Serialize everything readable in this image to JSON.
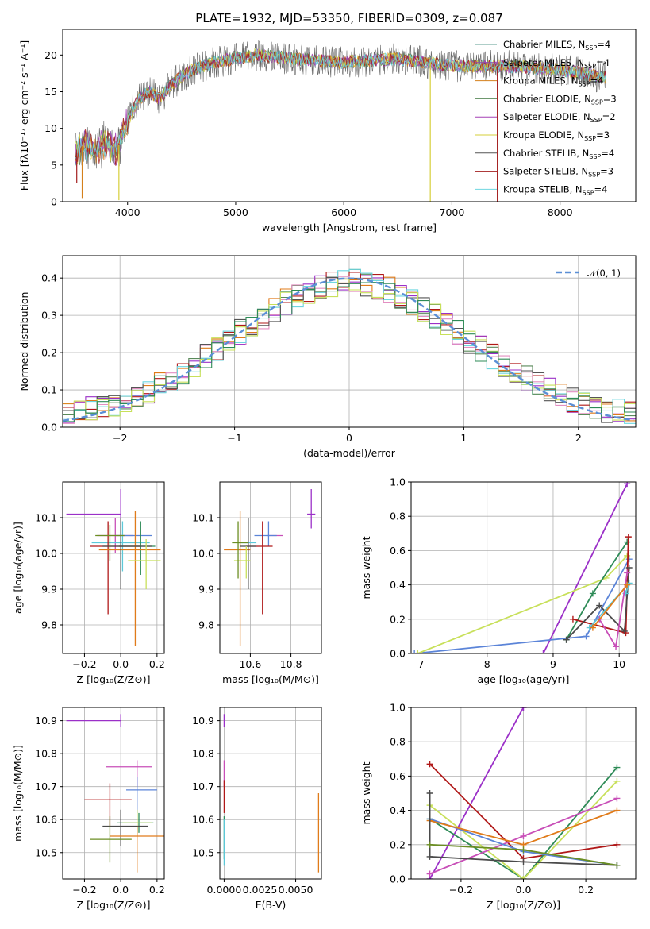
{
  "figure": {
    "title": "PLATE=1932, MJD=53350, FIBERID=0309, z=0.087"
  },
  "colors": {
    "series": [
      "#5e9c92",
      "#8e44ad",
      "#d4801c",
      "#5a8a5a",
      "#a641b5",
      "#d6cf3a",
      "#555555",
      "#a31e1e",
      "#6ed6e0"
    ],
    "models": [
      "#6b8e23",
      "#9b30c8",
      "#e07b1a",
      "#2e8b57",
      "#c84fb8",
      "#c8e05a",
      "#4a4a4a",
      "#b01818",
      "#5cc8d8",
      "#5b84d8"
    ],
    "normal": "#5b8fd6"
  },
  "legend_top": [
    {
      "text": "Chabrier MILES, N",
      "sub": "SSP",
      "tail": "=4"
    },
    {
      "text": "Salpeter MILES, N",
      "sub": "SSP",
      "tail": "=4"
    },
    {
      "text": "Kroupa MILES, N",
      "sub": "SSP",
      "tail": "=4"
    },
    {
      "text": "Chabrier ELODIE, N",
      "sub": "SSP",
      "tail": "=3"
    },
    {
      "text": "Salpeter ELODIE, N",
      "sub": "SSP",
      "tail": "=2"
    },
    {
      "text": "Kroupa ELODIE, N",
      "sub": "SSP",
      "tail": "=3"
    },
    {
      "text": "Chabrier STELIB, N",
      "sub": "SSP",
      "tail": "=4"
    },
    {
      "text": "Salpeter STELIB, N",
      "sub": "SSP",
      "tail": "=3"
    },
    {
      "text": "Kroupa STELIB, N",
      "sub": "SSP",
      "tail": "=4"
    }
  ],
  "chart_data": [
    {
      "type": "line",
      "title": "PLATE=1932, MJD=53350, FIBERID=0309, z=0.087",
      "xlabel": "wavelength [Angstrom, rest frame]",
      "ylabel": "Flux [fλ10⁻¹⁷ erg cm⁻² s⁻¹ A⁻¹]",
      "xlim": [
        3400,
        8700
      ],
      "ylim": [
        0,
        23.5
      ],
      "xticks": [
        4000,
        5000,
        6000,
        7000,
        8000
      ],
      "yticks": [
        0,
        5,
        10,
        15,
        20
      ],
      "spectrum_profile": {
        "x": [
          3500,
          3600,
          3700,
          3800,
          3900,
          4000,
          4100,
          4200,
          4300,
          4400,
          4500,
          4600,
          4800,
          5000,
          5200,
          5500,
          6000,
          6500,
          7000,
          7500,
          8000,
          8400
        ],
        "y": [
          6,
          8,
          7,
          8,
          7,
          11,
          14,
          15,
          14,
          16,
          17,
          18,
          19,
          19.5,
          20,
          19.5,
          19,
          19.5,
          18.5,
          18.5,
          18,
          17
        ]
      },
      "spikes": [
        {
          "x": 3530,
          "y": 2.5
        },
        {
          "x": 3580,
          "y": 0.5
        },
        {
          "x": 3920,
          "y": 0.2
        },
        {
          "x": 6800,
          "y": 0.0
        },
        {
          "x": 7420,
          "y": 0.0
        }
      ]
    },
    {
      "type": "bar",
      "xlabel": "(data-model)/error",
      "ylabel": "Normed distribution",
      "xlim": [
        -2.5,
        2.5
      ],
      "ylim": [
        0,
        0.46
      ],
      "xticks": [
        -2,
        -1,
        0,
        1,
        2
      ],
      "yticks": [
        0.0,
        0.1,
        0.2,
        0.3,
        0.4
      ],
      "normal_label": "𝒩(0, 1)",
      "bin_width": 0.1
    },
    {
      "type": "scatter",
      "xlabel": "Z [log₁₀(Z/Z⊙)]",
      "ylabel": "age  [log₁₀(age/yr)]",
      "xlim": [
        -0.32,
        0.24
      ],
      "ylim": [
        9.72,
        10.2
      ],
      "xticks": [
        -0.2,
        0.0,
        0.2
      ],
      "xticklabels": [
        "−0.2",
        "0.0",
        "0.2"
      ],
      "yticks": [
        9.8,
        9.9,
        10.0,
        10.1
      ],
      "points": [
        {
          "x": 0.0,
          "y": 10.11,
          "xerr": [
            0.3,
            0.0
          ],
          "yerr": [
            0.04,
            0.07
          ],
          "c": 1
        },
        {
          "x": -0.03,
          "y": 10.05,
          "xerr": [
            0.1,
            0.1
          ],
          "yerr": [
            0.05,
            0.05
          ],
          "c": 4
        },
        {
          "x": 0.09,
          "y": 10.05,
          "xerr": [
            0.12,
            0.08
          ],
          "yerr": [
            0.0,
            0.0
          ],
          "c": 9
        },
        {
          "x": 0.01,
          "y": 10.03,
          "xerr": [
            0.17,
            0.15
          ],
          "yerr": [
            0.08,
            0.06
          ],
          "c": 8
        },
        {
          "x": 0.11,
          "y": 10.02,
          "xerr": [
            0.12,
            0.08
          ],
          "yerr": [
            0.08,
            0.07
          ],
          "c": 3
        },
        {
          "x": -0.07,
          "y": 10.02,
          "xerr": [
            0.1,
            0.18
          ],
          "yerr": [
            0.19,
            0.07
          ],
          "c": 7
        },
        {
          "x": 0.08,
          "y": 10.01,
          "xerr": [
            0.2,
            0.14
          ],
          "yerr": [
            0.27,
            0.11
          ],
          "c": 2
        },
        {
          "x": 0.0,
          "y": 10.02,
          "xerr": [
            0.1,
            0.17
          ],
          "yerr": [
            0.12,
            0.08
          ],
          "c": 6
        },
        {
          "x": 0.14,
          "y": 9.98,
          "xerr": [
            0.1,
            0.08
          ],
          "yerr": [
            0.08,
            0.06
          ],
          "c": 5
        },
        {
          "x": -0.06,
          "y": 10.05,
          "xerr": [
            0.08,
            0.08
          ],
          "yerr": [
            0.07,
            0.03
          ],
          "c": 0
        }
      ]
    },
    {
      "type": "scatter",
      "xlabel": "mass [log₁₀(M/M⊙)]",
      "ylabel": "",
      "xlim": [
        10.45,
        10.95
      ],
      "ylim": [
        9.72,
        10.2
      ],
      "xticks": [
        10.6,
        10.8
      ],
      "yticks": [
        9.8,
        9.9,
        10.0,
        10.1
      ],
      "points": [
        {
          "x": 10.9,
          "y": 10.11,
          "xerr": [
            0.02,
            0.02
          ],
          "yerr": [
            0.04,
            0.07
          ],
          "c": 1
        },
        {
          "x": 10.74,
          "y": 10.05,
          "xerr": [
            0.06,
            0.02
          ],
          "yerr": [
            0.0,
            0.0
          ],
          "c": 4
        },
        {
          "x": 10.69,
          "y": 10.05,
          "xerr": [
            0.07,
            0.04
          ],
          "yerr": [
            0.03,
            0.04
          ],
          "c": 9
        },
        {
          "x": 10.66,
          "y": 10.02,
          "xerr": [
            0.08,
            0.05
          ],
          "yerr": [
            0.19,
            0.07
          ],
          "c": 7
        },
        {
          "x": 10.6,
          "y": 10.03,
          "xerr": [
            0.07,
            0.03
          ],
          "yerr": [
            0.0,
            0.0
          ],
          "c": 8
        },
        {
          "x": 10.55,
          "y": 10.01,
          "xerr": [
            0.08,
            0.05
          ],
          "yerr": [
            0.27,
            0.11
          ],
          "c": 2
        },
        {
          "x": 10.59,
          "y": 10.02,
          "xerr": [
            0.04,
            0.04
          ],
          "yerr": [
            0.12,
            0.08
          ],
          "c": 6
        },
        {
          "x": 10.58,
          "y": 9.98,
          "xerr": [
            0.06,
            0.02
          ],
          "yerr": [
            0.05,
            0.04
          ],
          "c": 5
        },
        {
          "x": 10.54,
          "y": 10.03,
          "xerr": [
            0.03,
            0.05
          ],
          "yerr": [
            0.1,
            0.06
          ],
          "c": 0
        }
      ]
    },
    {
      "type": "line",
      "xlabel": "age  [log₁₀(age/yr)]",
      "ylabel": "mass weight",
      "xlim": [
        6.85,
        10.25
      ],
      "ylim": [
        0,
        1.0
      ],
      "xticks": [
        7,
        8,
        9,
        10
      ],
      "yticks": [
        0.0,
        0.2,
        0.4,
        0.6,
        0.8,
        1.0
      ],
      "series": [
        {
          "c": 1,
          "x": [
            8.85,
            10.12
          ],
          "y": [
            0.0,
            0.99
          ]
        },
        {
          "c": 9,
          "x": [
            6.9,
            9.5,
            10.15
          ],
          "y": [
            0.0,
            0.1,
            0.55
          ]
        },
        {
          "c": 5,
          "x": [
            6.95,
            9.8,
            10.12
          ],
          "y": [
            0.0,
            0.44,
            0.57
          ]
        },
        {
          "c": 3,
          "x": [
            9.2,
            9.6,
            10.12
          ],
          "y": [
            0.08,
            0.35,
            0.65
          ]
        },
        {
          "c": 7,
          "x": [
            9.3,
            10.1,
            10.14
          ],
          "y": [
            0.2,
            0.12,
            0.68
          ]
        },
        {
          "c": 6,
          "x": [
            9.2,
            9.7,
            10.08,
            10.15
          ],
          "y": [
            0.08,
            0.28,
            0.13,
            0.5
          ]
        },
        {
          "c": 8,
          "x": [
            9.55,
            10.15,
            10.1
          ],
          "y": [
            0.15,
            0.41,
            0.35
          ]
        },
        {
          "c": 4,
          "x": [
            9.7,
            9.95,
            10.12
          ],
          "y": [
            0.2,
            0.04,
            0.47
          ]
        },
        {
          "c": 2,
          "x": [
            9.6,
            10.12
          ],
          "y": [
            0.15,
            0.4
          ]
        }
      ]
    },
    {
      "type": "scatter",
      "xlabel": "Z [log₁₀(Z/Z⊙)]",
      "ylabel": "mass [log₁₀(M/M⊙)]",
      "xlim": [
        -0.32,
        0.24
      ],
      "ylim": [
        10.42,
        10.94
      ],
      "xticks": [
        -0.2,
        0.0,
        0.2
      ],
      "xticklabels": [
        "−0.2",
        "0.0",
        "0.2"
      ],
      "yticks": [
        10.5,
        10.6,
        10.7,
        10.8,
        10.9
      ],
      "points": [
        {
          "x": 0.0,
          "y": 10.9,
          "xerr": [
            0.3,
            0.0
          ],
          "yerr": [
            0.02,
            0.02
          ],
          "c": 1
        },
        {
          "x": 0.09,
          "y": 10.76,
          "xerr": [
            0.17,
            0.08
          ],
          "yerr": [
            0.06,
            0.02
          ],
          "c": 4
        },
        {
          "x": 0.09,
          "y": 10.69,
          "xerr": [
            0.06,
            0.11
          ],
          "yerr": [
            0.07,
            0.04
          ],
          "c": 9
        },
        {
          "x": -0.06,
          "y": 10.66,
          "xerr": [
            0.14,
            0.12
          ],
          "yerr": [
            0.08,
            0.05
          ],
          "c": 7
        },
        {
          "x": 0.1,
          "y": 10.59,
          "xerr": [
            0.12,
            0.08
          ],
          "yerr": [
            0.03,
            0.03
          ],
          "c": 3
        },
        {
          "x": 0.09,
          "y": 10.59,
          "xerr": [
            0.08,
            0.08
          ],
          "yerr": [
            0.04,
            0.04
          ],
          "c": 5
        },
        {
          "x": 0.0,
          "y": 10.58,
          "xerr": [
            0.1,
            0.15
          ],
          "yerr": [
            0.06,
            0.05
          ],
          "c": 6
        },
        {
          "x": 0.09,
          "y": 10.55,
          "xerr": [
            0.15,
            0.16
          ],
          "yerr": [
            0.11,
            0.03
          ],
          "c": 2
        },
        {
          "x": -0.06,
          "y": 10.54,
          "xerr": [
            0.11,
            0.12
          ],
          "yerr": [
            0.07,
            0.07
          ],
          "c": 0
        }
      ]
    },
    {
      "type": "scatter",
      "xlabel": "E(B-V)",
      "ylabel": "",
      "xlim": [
        -0.0003,
        0.0068
      ],
      "ylim": [
        10.42,
        10.94
      ],
      "xticks": [
        0.0,
        0.0025,
        0.005
      ],
      "xticklabels": [
        "0.0000",
        "0.0025",
        "0.0050"
      ],
      "yticks": [
        10.5,
        10.6,
        10.7,
        10.8,
        10.9
      ],
      "points": [
        {
          "x": 0.0,
          "y": 10.9,
          "xerr": [
            0,
            0
          ],
          "yerr": [
            0.02,
            0.02
          ],
          "c": 1
        },
        {
          "x": 0.0,
          "y": 10.74,
          "xerr": [
            0,
            0
          ],
          "yerr": [
            0.04,
            0.04
          ],
          "c": 4
        },
        {
          "x": 0.0,
          "y": 10.67,
          "xerr": [
            0,
            0
          ],
          "yerr": [
            0.05,
            0.05
          ],
          "c": 7
        },
        {
          "x": 0.0,
          "y": 10.56,
          "xerr": [
            0,
            0
          ],
          "yerr": [
            0.08,
            0.05
          ],
          "c": 3
        },
        {
          "x": 0.0,
          "y": 10.52,
          "xerr": [
            0,
            0
          ],
          "yerr": [
            0.06,
            0.08
          ],
          "c": 8
        },
        {
          "x": 0.0066,
          "y": 10.56,
          "xerr": [
            0,
            0
          ],
          "yerr": [
            0.12,
            0.12
          ],
          "c": 2
        }
      ]
    },
    {
      "type": "line",
      "xlabel": "Z [log₁₀(Z/Z⊙)]",
      "ylabel": "mass weight",
      "xlim": [
        -0.36,
        0.36
      ],
      "ylim": [
        0,
        1.0
      ],
      "xticks": [
        -0.2,
        0.0,
        0.2
      ],
      "xticklabels": [
        "−0.2",
        "0.0",
        "0.2"
      ],
      "yticks": [
        0.0,
        0.2,
        0.4,
        0.6,
        0.8,
        1.0
      ],
      "series": [
        {
          "c": 1,
          "x": [
            -0.3,
            0.0
          ],
          "y": [
            0.0,
            1.0
          ]
        },
        {
          "c": 7,
          "x": [
            -0.3,
            0.0,
            0.3
          ],
          "y": [
            0.67,
            0.12,
            0.2
          ]
        },
        {
          "c": 3,
          "x": [
            -0.3,
            0.0,
            0.3
          ],
          "y": [
            0.35,
            0.0,
            0.65
          ]
        },
        {
          "c": 5,
          "x": [
            -0.3,
            0.0,
            0.3
          ],
          "y": [
            0.43,
            0.0,
            0.57
          ]
        },
        {
          "c": 4,
          "x": [
            -0.3,
            0.0,
            0.3
          ],
          "y": [
            0.03,
            0.25,
            0.47
          ]
        },
        {
          "c": 9,
          "x": [
            -0.3,
            0.0,
            0.3
          ],
          "y": [
            0.35,
            0.16,
            0.08
          ]
        },
        {
          "c": 2,
          "x": [
            -0.3,
            0.0,
            0.3
          ],
          "y": [
            0.34,
            0.2,
            0.4
          ]
        },
        {
          "c": 6,
          "x": [
            -0.3,
            -0.3,
            0.0,
            0.3
          ],
          "y": [
            0.5,
            0.13,
            0.1,
            0.08
          ]
        },
        {
          "c": 0,
          "x": [
            -0.3,
            0.0,
            0.3
          ],
          "y": [
            0.2,
            0.17,
            0.08
          ]
        }
      ]
    }
  ]
}
